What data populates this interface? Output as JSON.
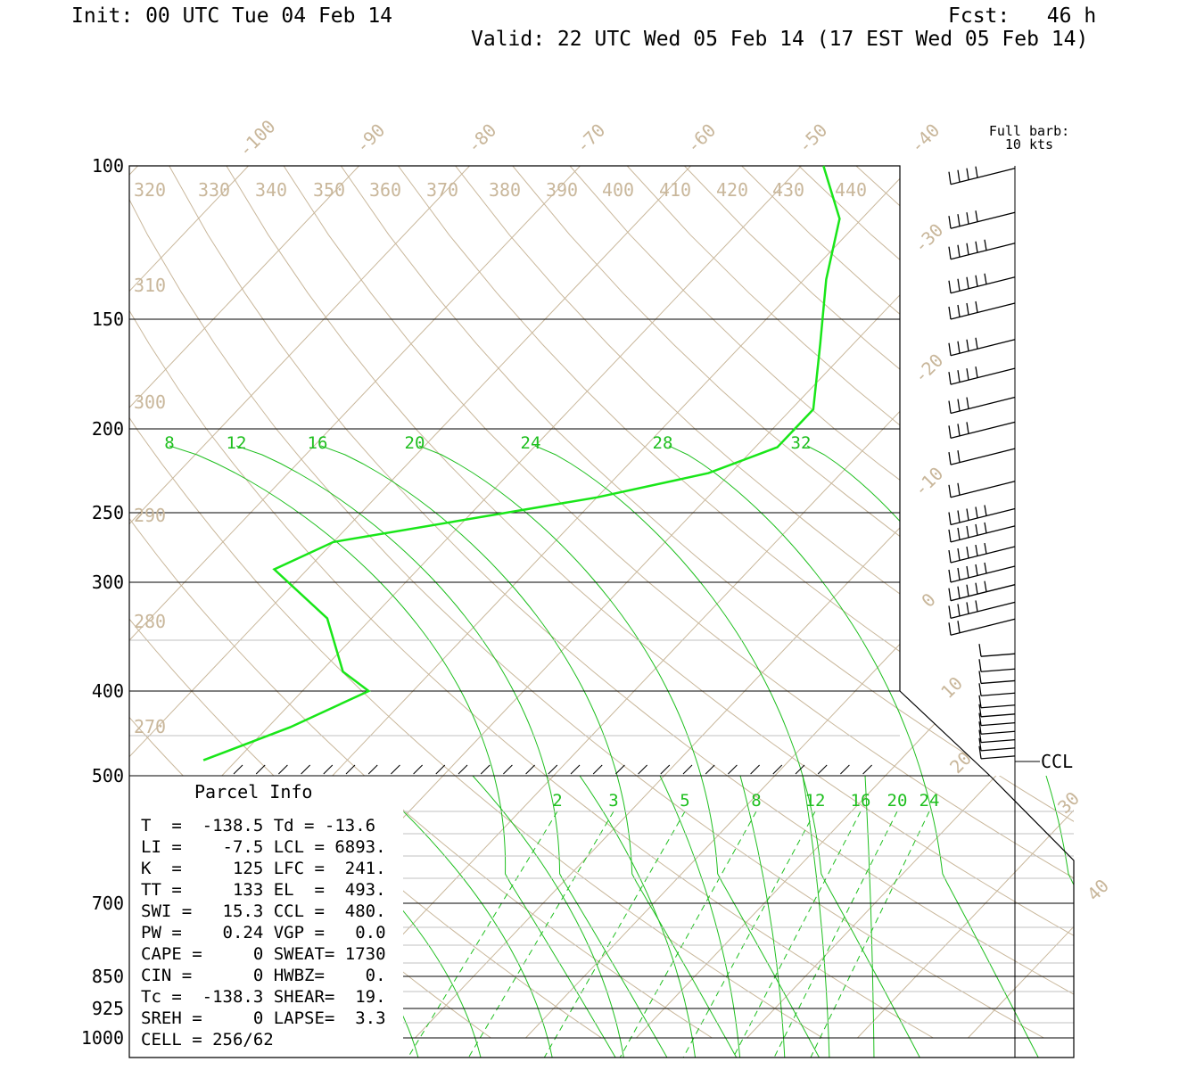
{
  "header": {
    "init": "Init: 00 UTC Tue 04 Feb 14",
    "fcst": "Fcst:   46 h",
    "valid": "Valid: 22 UTC Wed 05 Feb 14 (17 EST Wed 05 Feb 14)"
  },
  "barb_note": [
    "Full barb:",
    "10 kts"
  ],
  "ccl_label": "CCL",
  "colors": {
    "isotherm": "#c9b79b",
    "mixing": "#1fbf1f",
    "sounding": "#19e619",
    "frame": "#000000"
  },
  "chart_data": {
    "type": "skew-t",
    "pressure_labels": [
      "100",
      "150",
      "200",
      "250",
      "300",
      "400",
      "500",
      "700",
      "850",
      "925",
      "1000"
    ],
    "temperature_labels": [
      "-100",
      "-90",
      "-80",
      "-70",
      "-60",
      "-50",
      "-40",
      "-30",
      "-20",
      "-10",
      "0",
      "10",
      "20",
      "30",
      "40"
    ],
    "theta_labels": [
      "320",
      "330",
      "340",
      "350",
      "360",
      "370",
      "380",
      "390",
      "400",
      "410",
      "420",
      "430",
      "440",
      "310",
      "300",
      "290",
      "280",
      "270"
    ],
    "upper_curve_labels": [
      "8",
      "12",
      "16",
      "20",
      "24",
      "28",
      "32"
    ],
    "mixing_ratio_labels": [
      "2",
      "3",
      "5",
      "8",
      "12",
      "16",
      "20",
      "24"
    ],
    "sounding_profile": [
      {
        "p": 100,
        "t": -38.0
      },
      {
        "p": 115,
        "t": -32.0
      },
      {
        "p": 135,
        "t": -28.0
      },
      {
        "p": 160,
        "t": -23.0
      },
      {
        "p": 190,
        "t": -18.0
      },
      {
        "p": 210,
        "t": -18.0
      },
      {
        "p": 225,
        "t": -22.0
      },
      {
        "p": 240,
        "t": -30.0
      },
      {
        "p": 270,
        "t": -50.0
      },
      {
        "p": 290,
        "t": -53.0
      },
      {
        "p": 330,
        "t": -44.0
      },
      {
        "p": 380,
        "t": -38.0
      },
      {
        "p": 400,
        "t": -34.0
      },
      {
        "p": 440,
        "t": -38.0
      },
      {
        "p": 480,
        "t": -43.0
      }
    ],
    "wind_barbs": [
      {
        "p": 105,
        "full": 4
      },
      {
        "p": 118,
        "full": 4
      },
      {
        "p": 128,
        "full": 5
      },
      {
        "p": 140,
        "full": 5
      },
      {
        "p": 150,
        "full": 4
      },
      {
        "p": 165,
        "full": 4
      },
      {
        "p": 178,
        "full": 4
      },
      {
        "p": 192,
        "full": 3
      },
      {
        "p": 205,
        "full": 3
      },
      {
        "p": 220,
        "full": 2
      },
      {
        "p": 240,
        "full": 2
      },
      {
        "p": 258,
        "full": 5
      },
      {
        "p": 270,
        "full": 5
      },
      {
        "p": 285,
        "full": 5
      },
      {
        "p": 300,
        "full": 5
      },
      {
        "p": 315,
        "full": 5
      },
      {
        "p": 330,
        "full": 4
      },
      {
        "p": 345,
        "full": 2
      },
      {
        "p": 365,
        "full": 1
      },
      {
        "p": 380,
        "full": 1
      },
      {
        "p": 392,
        "full": 1
      },
      {
        "p": 405,
        "full": 1
      },
      {
        "p": 418,
        "full": 1
      },
      {
        "p": 428,
        "full": 1
      },
      {
        "p": 438,
        "full": 1
      },
      {
        "p": 448,
        "full": 1
      },
      {
        "p": 458,
        "full": 1
      },
      {
        "p": 468,
        "full": 1
      },
      {
        "p": 478,
        "full": 1
      }
    ]
  },
  "parcel_info": {
    "title": "Parcel Info",
    "rows": [
      "T  =  -138.5 Td = -13.6",
      "LI =    -7.5 LCL = 6893.",
      "K  =     125 LFC =  241.",
      "TT =     133 EL  =  493.",
      "SWI =   15.3 CCL =  480.",
      "PW =    0.24 VGP =   0.0",
      "CAPE =     0 SWEAT= 1730",
      "CIN =      0 HWBZ=    0.",
      "Tc =  -138.3 SHEAR=  19.",
      "SREH =     0 LAPSE=  3.3",
      "CELL = 256/62"
    ]
  }
}
